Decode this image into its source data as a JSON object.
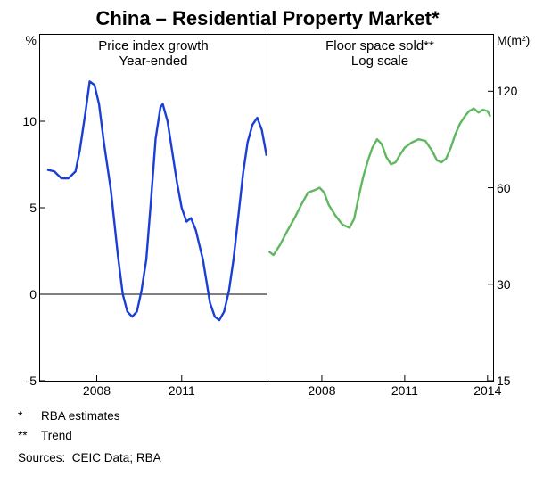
{
  "title": "China – Residential Property Market*",
  "left_panel": {
    "subtitle_line1": "Price index growth",
    "subtitle_line2": "Year-ended",
    "unit": "%",
    "y_axis": {
      "min": -5,
      "max": 15,
      "ticks": [
        -5,
        0,
        5,
        10
      ]
    },
    "x_axis": {
      "min": 2006,
      "max": 2014,
      "ticks": [
        2008,
        2011
      ],
      "labels": [
        "2008",
        "2011"
      ]
    },
    "zero_line": 0,
    "series": {
      "color": "#1a3fd6",
      "width": 2.4,
      "data": [
        [
          2006.25,
          7.2
        ],
        [
          2006.5,
          7.1
        ],
        [
          2006.75,
          6.7
        ],
        [
          2007.0,
          6.7
        ],
        [
          2007.25,
          7.1
        ],
        [
          2007.4,
          8.3
        ],
        [
          2007.6,
          10.5
        ],
        [
          2007.75,
          12.3
        ],
        [
          2007.92,
          12.1
        ],
        [
          2008.08,
          11.0
        ],
        [
          2008.25,
          8.8
        ],
        [
          2008.5,
          6.0
        ],
        [
          2008.75,
          2.2
        ],
        [
          2008.92,
          0.0
        ],
        [
          2009.08,
          -1.0
        ],
        [
          2009.25,
          -1.3
        ],
        [
          2009.42,
          -1.0
        ],
        [
          2009.58,
          0.2
        ],
        [
          2009.75,
          2.0
        ],
        [
          2009.92,
          5.5
        ],
        [
          2010.08,
          9.0
        ],
        [
          2010.25,
          10.8
        ],
        [
          2010.33,
          11.0
        ],
        [
          2010.5,
          10.0
        ],
        [
          2010.67,
          8.2
        ],
        [
          2010.83,
          6.5
        ],
        [
          2011.0,
          5.0
        ],
        [
          2011.17,
          4.2
        ],
        [
          2011.33,
          4.4
        ],
        [
          2011.5,
          3.7
        ],
        [
          2011.75,
          2.0
        ],
        [
          2012.0,
          -0.5
        ],
        [
          2012.17,
          -1.3
        ],
        [
          2012.33,
          -1.5
        ],
        [
          2012.5,
          -1.0
        ],
        [
          2012.67,
          0.2
        ],
        [
          2012.83,
          2.0
        ],
        [
          2013.0,
          4.5
        ],
        [
          2013.17,
          7.0
        ],
        [
          2013.33,
          8.8
        ],
        [
          2013.5,
          9.8
        ],
        [
          2013.67,
          10.2
        ],
        [
          2013.83,
          9.5
        ],
        [
          2014.0,
          8.0
        ]
      ]
    }
  },
  "right_panel": {
    "subtitle_line1": "Floor space sold**",
    "subtitle_line2": "Log scale",
    "unit": "M(m²)",
    "y_axis": {
      "log": true,
      "min": 15,
      "max": 180,
      "ticks": [
        15,
        30,
        60,
        120
      ]
    },
    "x_axis": {
      "min": 2006,
      "max": 2014.2,
      "ticks": [
        2008,
        2011,
        2014
      ],
      "labels": [
        "2008",
        "2011",
        "2014"
      ]
    },
    "series": {
      "color": "#5fb85f",
      "width": 2.4,
      "data": [
        [
          2006.08,
          38
        ],
        [
          2006.25,
          37
        ],
        [
          2006.5,
          40
        ],
        [
          2006.75,
          44
        ],
        [
          2007.0,
          48
        ],
        [
          2007.25,
          53
        ],
        [
          2007.5,
          58
        ],
        [
          2007.75,
          59
        ],
        [
          2007.92,
          60
        ],
        [
          2008.08,
          58
        ],
        [
          2008.25,
          53
        ],
        [
          2008.5,
          49
        ],
        [
          2008.75,
          46
        ],
        [
          2009.0,
          45
        ],
        [
          2009.17,
          48
        ],
        [
          2009.33,
          56
        ],
        [
          2009.5,
          65
        ],
        [
          2009.67,
          73
        ],
        [
          2009.83,
          80
        ],
        [
          2010.0,
          85
        ],
        [
          2010.17,
          82
        ],
        [
          2010.33,
          75
        ],
        [
          2010.5,
          71
        ],
        [
          2010.67,
          72
        ],
        [
          2010.83,
          76
        ],
        [
          2011.0,
          80
        ],
        [
          2011.25,
          83
        ],
        [
          2011.5,
          85
        ],
        [
          2011.75,
          84
        ],
        [
          2012.0,
          78
        ],
        [
          2012.17,
          73
        ],
        [
          2012.33,
          72
        ],
        [
          2012.5,
          74
        ],
        [
          2012.67,
          80
        ],
        [
          2012.83,
          88
        ],
        [
          2013.0,
          95
        ],
        [
          2013.17,
          100
        ],
        [
          2013.33,
          104
        ],
        [
          2013.5,
          106
        ],
        [
          2013.67,
          103
        ],
        [
          2013.83,
          105
        ],
        [
          2014.0,
          104
        ],
        [
          2014.1,
          100
        ]
      ]
    }
  },
  "footnotes": [
    {
      "mark": "*",
      "text": "RBA estimates"
    },
    {
      "mark": "**",
      "text": "Trend"
    }
  ],
  "sources_label": "Sources:",
  "sources_text": "CEIC Data; RBA"
}
